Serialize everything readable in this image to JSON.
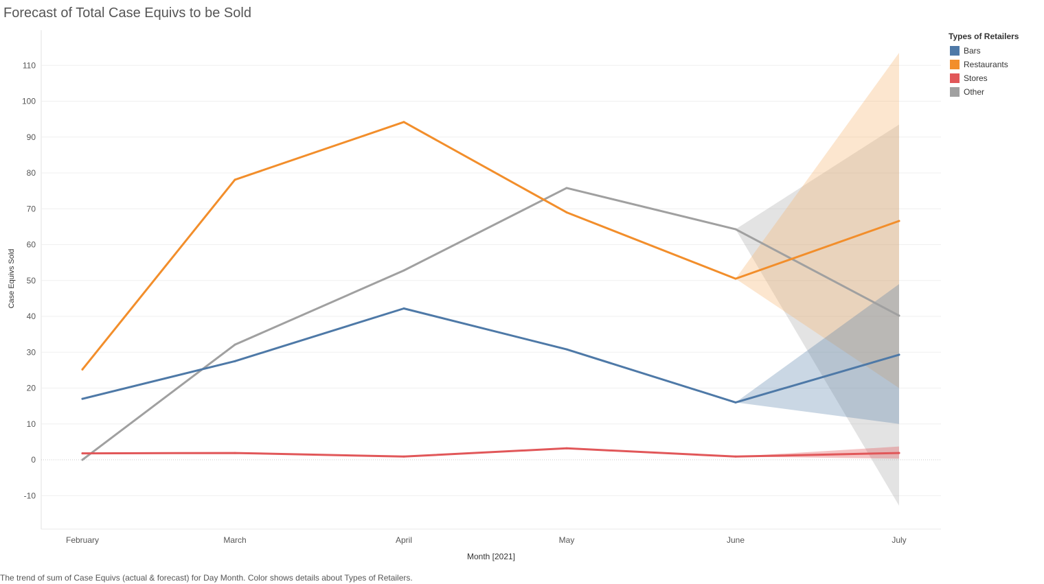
{
  "title": "Forecast of Total Case Equivs to be Sold",
  "caption": "The trend of sum of Case Equivs (actual & forecast)  for Day Month.  Color shows details about Types of Retailers.",
  "legend": {
    "title": "Types of Retailers",
    "items": [
      {
        "label": "Bars",
        "color": "#4e79a7"
      },
      {
        "label": "Restaurants",
        "color": "#f28e2b"
      },
      {
        "label": "Stores",
        "color": "#e15759"
      },
      {
        "label": "Other",
        "color": "#a0a0a0"
      }
    ]
  },
  "chart_data": {
    "type": "line",
    "title": "Forecast of Total Case Equivs to be Sold",
    "xlabel": "Month [2021]",
    "ylabel": "Case Equivs Sold",
    "categories": [
      "February",
      "March",
      "April",
      "May",
      "June",
      "July"
    ],
    "ylim": [
      -19,
      118
    ],
    "yticks": [
      -10,
      0,
      10,
      20,
      30,
      40,
      50,
      60,
      70,
      80,
      90,
      100,
      110
    ],
    "grid": true,
    "legend_position": "top-right",
    "forecast_start": "June",
    "series": [
      {
        "name": "Bars",
        "color": "#4e79a7",
        "values": [
          17,
          27.5,
          42.2,
          30.8,
          16,
          29.3
        ],
        "forecast_band": {
          "from": "June",
          "lower": [
            16,
            10
          ],
          "upper": [
            16,
            49
          ]
        }
      },
      {
        "name": "Restaurants",
        "color": "#f28e2b",
        "values": [
          25.2,
          78.1,
          94.2,
          69,
          50.5,
          66.6
        ],
        "forecast_band": {
          "from": "June",
          "lower": [
            50.5,
            20
          ],
          "upper": [
            50.5,
            113.5
          ]
        }
      },
      {
        "name": "Stores",
        "color": "#e15759",
        "values": [
          1.8,
          1.9,
          0.9,
          3.2,
          0.9,
          1.9
        ],
        "forecast_band": {
          "from": "June",
          "lower": [
            0.9,
            0.3
          ],
          "upper": [
            0.9,
            3.7
          ]
        }
      },
      {
        "name": "Other",
        "color": "#a0a0a0",
        "values": [
          0,
          32.1,
          52.8,
          75.8,
          64.3,
          40.2
        ],
        "forecast_band": {
          "from": "June",
          "lower": [
            64.3,
            -12.8
          ],
          "upper": [
            64.3,
            93.5
          ]
        }
      }
    ]
  }
}
